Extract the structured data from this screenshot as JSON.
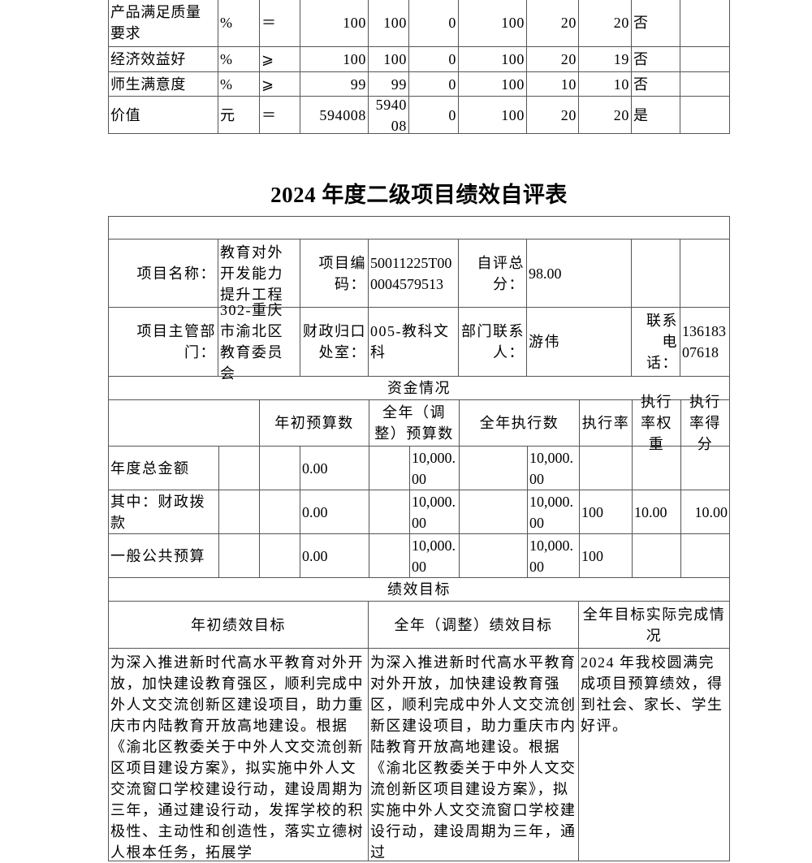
{
  "indicator_rows": [
    {
      "indicator": "产品满足质量要求",
      "unit": "%",
      "operator": "＝",
      "target": "100",
      "actual": "100",
      "deviation": "0",
      "rate": "100",
      "weight": "20",
      "score": "20",
      "flag": "否",
      "note": ""
    },
    {
      "indicator": "经济效益好",
      "unit": "%",
      "operator": "⩾",
      "target": "100",
      "actual": "100",
      "deviation": "0",
      "rate": "100",
      "weight": "20",
      "score": "19",
      "flag": "否",
      "note": ""
    },
    {
      "indicator": "师生满意度",
      "unit": "%",
      "operator": "⩾",
      "target": "99",
      "actual": "99",
      "deviation": "0",
      "rate": "100",
      "weight": "10",
      "score": "10",
      "flag": "否",
      "note": ""
    },
    {
      "indicator": "价值",
      "unit": "元",
      "operator": "＝",
      "target": "594008",
      "actual": "594008",
      "deviation": "0",
      "rate": "100",
      "weight": "20",
      "score": "20",
      "flag": "是",
      "note": ""
    }
  ],
  "title": "2024 年度二级项目绩效自评表",
  "project": {
    "name_label": "项目名称：",
    "name": "教育对外开发能力提升工程",
    "code_label": "项目编码：",
    "code": "50011225T000004579513",
    "score_label": "自评总分：",
    "score": "98.00",
    "dept_label": "项目主管部门：",
    "dept": "302-重庆市渝北区教育委员会",
    "finance_label": "财政归口处室：",
    "finance": "005-教科文科",
    "contact_label": "部门联系人：",
    "contact": "游伟",
    "phone_label": "联系电话：",
    "phone": "13618307618"
  },
  "funds": {
    "section": "资金情况",
    "headers": [
      "年初预算数",
      "全年（调整）预算数",
      "全年执行数",
      "执行率",
      "执行率权重",
      "执行率得分"
    ],
    "rows": [
      {
        "label": "年度总金额",
        "initial": "0.00",
        "adjusted": "10,000.00",
        "executed": "10,000.00",
        "rate": "",
        "weight": "",
        "score": ""
      },
      {
        "label": "其中：财政拨款",
        "initial": "0.00",
        "adjusted": "10,000.00",
        "executed": "10,000.00",
        "rate": "100",
        "weight": "10.00",
        "score": "10.00"
      },
      {
        "label": "一般公共预算",
        "initial": "0.00",
        "adjusted": "10,000.00",
        "executed": "10,000.00",
        "rate": "100",
        "weight": "",
        "score": ""
      }
    ]
  },
  "goals": {
    "section": "绩效目标",
    "headers": [
      "年初绩效目标",
      "全年（调整）绩效目标",
      "全年目标实际完成情况"
    ],
    "initial": "为深入推进新时代高水平教育对外开放，加快建设教育强区，顺利完成中外人文交流创新区建设项目，助力重庆市内陆教育开放高地建设。根据《渝北区教委关于中外人文交流创新区项目建设方案》，拟实施中外人文交流窗口学校建设行动，建设周期为三年，通过建设行动，发挥学校的积极性、主动性和创造性，落实立德树人根本任务，拓展学",
    "adjusted": "为深入推进新时代高水平教育对外开放，加快建设教育强区，顺利完成中外人文交流创新区建设项目，助力重庆市内陆教育开放高地建设。根据《渝北区教委关于中外人文交流创新区项目建设方案》，拟实施中外人文交流窗口学校建设行动，建设周期为三年，通过",
    "actual": "2024 年我校圆满完成项目预算绩效，得到社会、家长、学生好评。"
  }
}
